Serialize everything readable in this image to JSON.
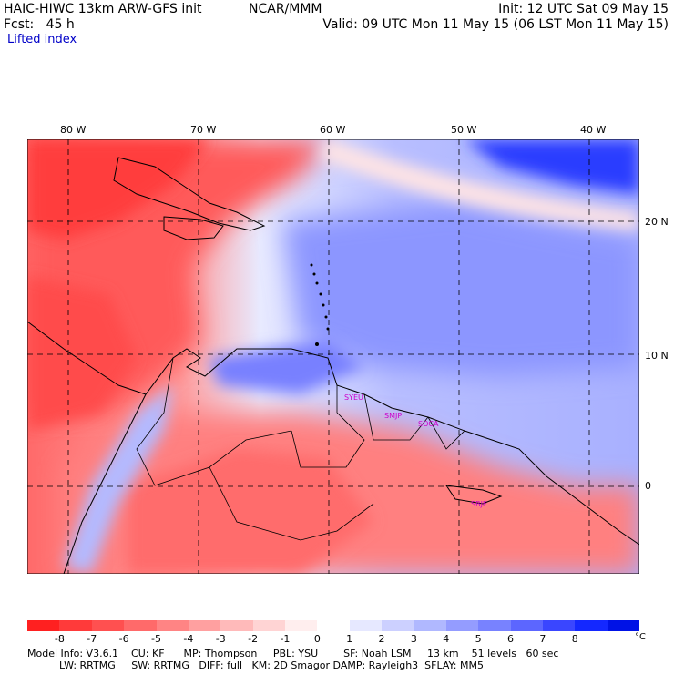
{
  "header": {
    "model": "HAIC-HIWC 13km ARW-GFS init",
    "org": "NCAR/MMM",
    "init": "Init: 12 UTC Sat 09 May 15",
    "fcst": "Fcst:   45 h",
    "valid": "Valid: 09 UTC Mon 11 May 15 (06 LST Mon 11 May 15)",
    "field": "Lifted index"
  },
  "map": {
    "lon_labels": [
      "80 W",
      "70 W",
      "60 W",
      "50 W",
      "40 W"
    ],
    "lat_labels": [
      "20 N",
      "10 N",
      "0"
    ],
    "stations": [
      "SYEU",
      "SMJP",
      "SOCA",
      "SBJE"
    ]
  },
  "colorbar": {
    "ticks": [
      "-8",
      "-7",
      "-6",
      "-5",
      "-4",
      "-3",
      "-2",
      "-1",
      "0",
      "1",
      "2",
      "3",
      "4",
      "5",
      "6",
      "7",
      "8"
    ],
    "unit": "°C",
    "colors": [
      "#ff2020",
      "#ff3a3a",
      "#ff5050",
      "#ff6a6a",
      "#ff8484",
      "#ffa0a0",
      "#ffbaba",
      "#ffd4d4",
      "#ffeeee",
      "#ffffff",
      "#e6e8ff",
      "#ccd0ff",
      "#b0b8ff",
      "#949cff",
      "#7882ff",
      "#5c66ff",
      "#3a46ff",
      "#1428ff",
      "#0012e6"
    ]
  },
  "footer": {
    "line1": "Model Info: V3.6.1    CU: KF      MP: Thompson     PBL: YSU        SF: Noah LSM     13 km    51 levels   60 sec",
    "line2": "          LW: RRTMG     SW: RRTMG   DIFF: full   KM: 2D Smagor DAMP: Rayleigh3  SFLAY: MM5"
  }
}
